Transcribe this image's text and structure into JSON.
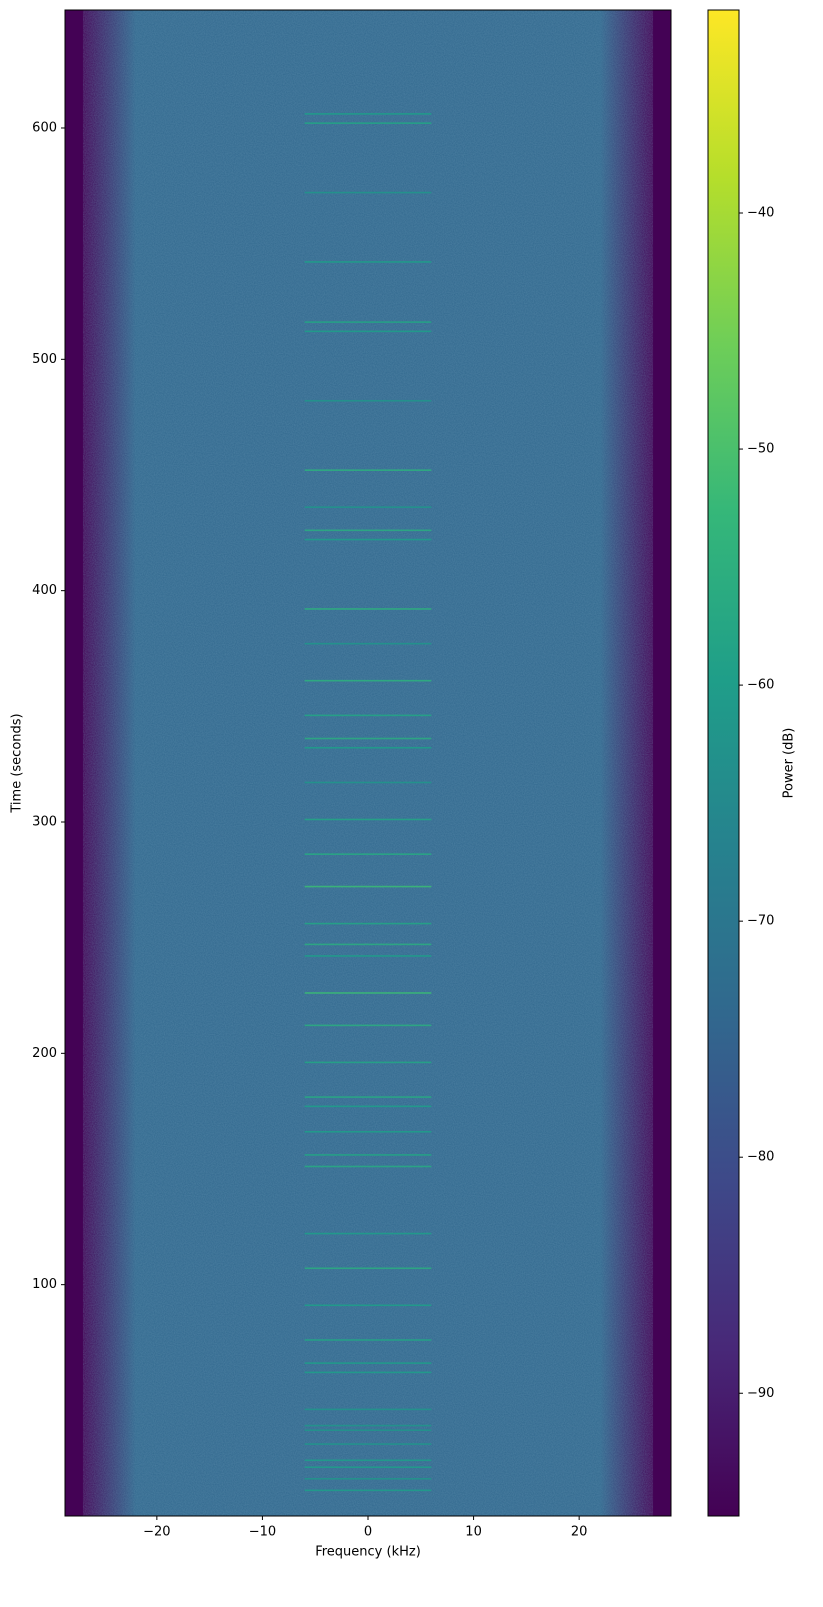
{
  "chart_data": {
    "type": "spectrogram",
    "xlabel": "Frequency (kHz)",
    "ylabel": "Time (seconds)",
    "colorbar_label": "Power (dB)",
    "colormap": "viridis",
    "xlim": [
      -28.7,
      28.7
    ],
    "ylim": [
      0,
      651
    ],
    "clim": [
      -95.2,
      -31.4
    ],
    "xticks": [
      {
        "value": -20,
        "label": "−20"
      },
      {
        "value": -10,
        "label": "−10"
      },
      0,
      10,
      20
    ],
    "yticks": [
      100,
      200,
      300,
      400,
      500,
      600
    ],
    "cticks": [
      {
        "value": -90,
        "label": "−90"
      },
      {
        "value": -80,
        "label": "−80"
      },
      {
        "value": -70,
        "label": "−70"
      },
      {
        "value": -60,
        "label": "−60"
      },
      {
        "value": -50,
        "label": "−50"
      },
      {
        "value": -40,
        "label": "−40"
      }
    ],
    "background": {
      "center_db": -74,
      "edge_db": -95,
      "rolloff_khz": [
        -27,
        -22,
        22,
        27
      ]
    },
    "burst_band_khz": [
      -6,
      6
    ],
    "bursts": {
      "time": [
        606,
        602,
        572,
        542,
        516,
        512,
        482,
        452,
        436,
        426,
        422,
        392,
        377,
        361,
        346,
        336,
        332,
        317,
        301,
        286,
        272,
        256,
        247,
        242,
        226,
        212,
        196,
        181,
        177,
        166,
        156,
        151,
        122,
        107,
        91,
        76,
        66,
        62,
        46,
        39,
        37,
        31,
        24,
        21,
        16,
        11
      ],
      "power": [
        -60,
        -58,
        -62,
        -60,
        -58,
        -60,
        -62,
        -55,
        -62,
        -56,
        -60,
        -55,
        -62,
        -55,
        -58,
        -56,
        -60,
        -62,
        -58,
        -57,
        -52,
        -58,
        -56,
        -60,
        -52,
        -56,
        -58,
        -57,
        -60,
        -60,
        -58,
        -57,
        -60,
        -56,
        -60,
        -58,
        -60,
        -60,
        -62,
        -62,
        -62,
        -62,
        -60,
        -60,
        -62,
        -60
      ]
    }
  }
}
